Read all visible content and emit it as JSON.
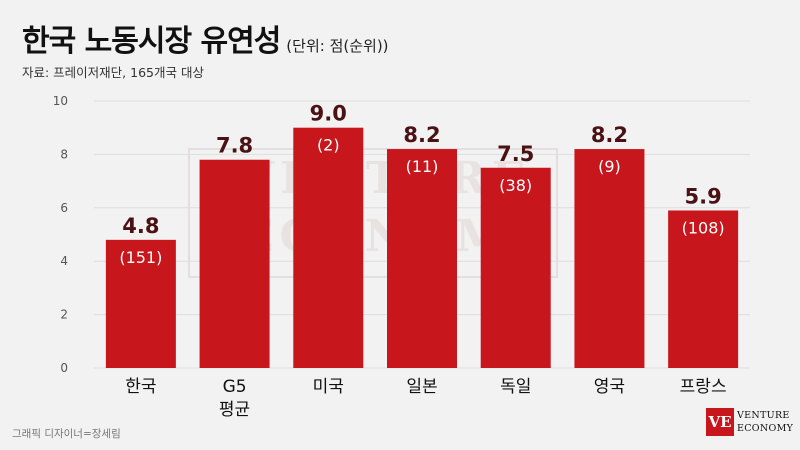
{
  "header": {
    "title": "한국 노동시장 유연성",
    "unit": "(단위: 점(순위))",
    "source": "자료: 프레이저재단, 165개국 대상"
  },
  "footer": {
    "credit": "그래픽 디자이너=장세림"
  },
  "watermark": {
    "line1": "VENTURE",
    "line2": "ECONOMY"
  },
  "logo": {
    "mark": "VE",
    "line1": "VENTURE",
    "line2": "ECONOMY"
  },
  "colors": {
    "bar": "#c8161d",
    "value_label": "#4a1214",
    "rank_label": "#ffffff",
    "grid": "#dddddd",
    "axis_text": "#555555"
  },
  "chart_data": {
    "type": "bar",
    "categories": [
      [
        "한국"
      ],
      [
        "G5",
        "평균"
      ],
      [
        "미국"
      ],
      [
        "일본"
      ],
      [
        "독일"
      ],
      [
        "영국"
      ],
      [
        "프랑스"
      ]
    ],
    "values": [
      4.8,
      7.8,
      9.0,
      8.2,
      7.5,
      8.2,
      5.9
    ],
    "value_labels": [
      "4.8",
      "7.8",
      "9.0",
      "8.2",
      "7.5",
      "8.2",
      "5.9"
    ],
    "rank_labels": [
      "(151)",
      "",
      "(2)",
      "(11)",
      "(38)",
      "(9)",
      "(108)"
    ],
    "ylim": [
      0,
      10
    ],
    "yticks": [
      0,
      2,
      4,
      6,
      8,
      10
    ],
    "grid": true
  }
}
